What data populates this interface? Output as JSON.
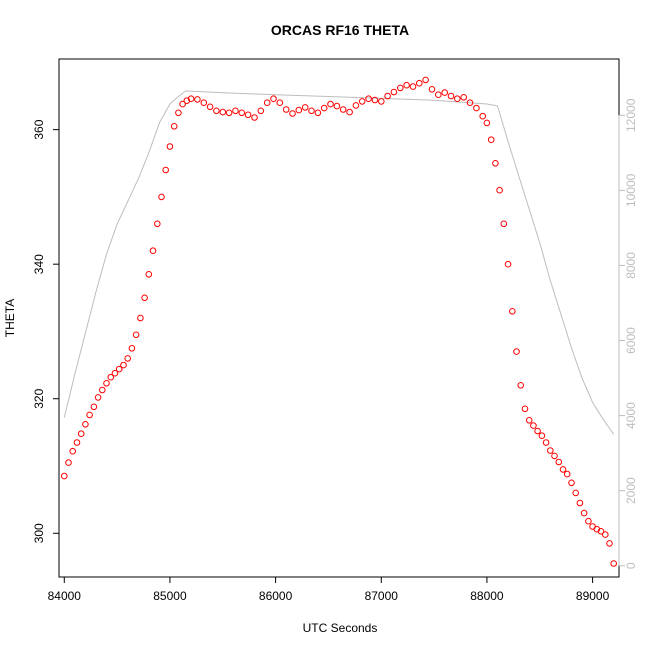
{
  "chart_data": {
    "type": "scatter",
    "title": "ORCAS RF16 THETA",
    "xlabel": "UTC Seconds",
    "ylabel": "THETA",
    "xlim": [
      83950,
      89250
    ],
    "ylim": [
      293.5,
      370.5
    ],
    "x_ticks": [
      84000,
      85000,
      86000,
      87000,
      88000,
      89000
    ],
    "y_ticks": [
      300,
      320,
      340,
      360
    ],
    "series": [
      {
        "marker": "open-circle",
        "color": "#ff0000",
        "points": [
          [
            84000,
            308.5
          ],
          [
            84040,
            310.5
          ],
          [
            84080,
            312.2
          ],
          [
            84120,
            313.5
          ],
          [
            84160,
            314.8
          ],
          [
            84200,
            316.2
          ],
          [
            84240,
            317.6
          ],
          [
            84280,
            318.8
          ],
          [
            84320,
            320.2
          ],
          [
            84360,
            321.3
          ],
          [
            84400,
            322.3
          ],
          [
            84440,
            323.2
          ],
          [
            84480,
            323.8
          ],
          [
            84520,
            324.4
          ],
          [
            84560,
            325.0
          ],
          [
            84600,
            326.0
          ],
          [
            84640,
            327.5
          ],
          [
            84680,
            329.5
          ],
          [
            84720,
            332.0
          ],
          [
            84760,
            335.0
          ],
          [
            84800,
            338.5
          ],
          [
            84840,
            342.0
          ],
          [
            84880,
            346.0
          ],
          [
            84920,
            350.0
          ],
          [
            84960,
            354.0
          ],
          [
            85000,
            357.5
          ],
          [
            85040,
            360.5
          ],
          [
            85080,
            362.5
          ],
          [
            85120,
            363.8
          ],
          [
            85160,
            364.3
          ],
          [
            85200,
            364.6
          ],
          [
            85260,
            364.5
          ],
          [
            85320,
            364.0
          ],
          [
            85380,
            363.4
          ],
          [
            85440,
            362.8
          ],
          [
            85500,
            362.6
          ],
          [
            85560,
            362.5
          ],
          [
            85620,
            362.8
          ],
          [
            85680,
            362.5
          ],
          [
            85740,
            362.2
          ],
          [
            85800,
            361.8
          ],
          [
            85860,
            362.8
          ],
          [
            85920,
            364.0
          ],
          [
            85980,
            364.6
          ],
          [
            86040,
            364.0
          ],
          [
            86100,
            363.0
          ],
          [
            86160,
            362.4
          ],
          [
            86220,
            362.9
          ],
          [
            86280,
            363.3
          ],
          [
            86340,
            362.8
          ],
          [
            86400,
            362.5
          ],
          [
            86460,
            363.2
          ],
          [
            86520,
            363.8
          ],
          [
            86580,
            363.5
          ],
          [
            86640,
            363.0
          ],
          [
            86700,
            362.6
          ],
          [
            86760,
            363.6
          ],
          [
            86820,
            364.2
          ],
          [
            86880,
            364.6
          ],
          [
            86940,
            364.4
          ],
          [
            87000,
            364.2
          ],
          [
            87060,
            365.0
          ],
          [
            87120,
            365.6
          ],
          [
            87180,
            366.2
          ],
          [
            87240,
            366.6
          ],
          [
            87300,
            366.4
          ],
          [
            87360,
            366.9
          ],
          [
            87420,
            367.4
          ],
          [
            87480,
            366.0
          ],
          [
            87540,
            365.2
          ],
          [
            87600,
            365.5
          ],
          [
            87660,
            365.0
          ],
          [
            87720,
            364.6
          ],
          [
            87780,
            364.8
          ],
          [
            87840,
            364.0
          ],
          [
            87900,
            363.2
          ],
          [
            87960,
            362.0
          ],
          [
            88000,
            361.0
          ],
          [
            88040,
            358.5
          ],
          [
            88080,
            355.0
          ],
          [
            88120,
            351.0
          ],
          [
            88160,
            346.0
          ],
          [
            88200,
            340.0
          ],
          [
            88240,
            333.0
          ],
          [
            88280,
            327.0
          ],
          [
            88320,
            322.0
          ],
          [
            88360,
            318.5
          ],
          [
            88400,
            316.8
          ],
          [
            88440,
            316.0
          ],
          [
            88480,
            315.2
          ],
          [
            88520,
            314.5
          ],
          [
            88560,
            313.5
          ],
          [
            88600,
            312.3
          ],
          [
            88640,
            311.5
          ],
          [
            88680,
            310.6
          ],
          [
            88720,
            309.5
          ],
          [
            88760,
            308.8
          ],
          [
            88800,
            307.5
          ],
          [
            88840,
            306.0
          ],
          [
            88880,
            304.5
          ],
          [
            88920,
            303.0
          ],
          [
            88960,
            301.8
          ],
          [
            89000,
            301.0
          ],
          [
            89040,
            300.6
          ],
          [
            89080,
            300.3
          ],
          [
            89120,
            299.8
          ],
          [
            89160,
            298.5
          ],
          [
            89200,
            295.5
          ]
        ]
      },
      {
        "axis": "right",
        "type": "line",
        "color": "#bdbdbd",
        "points": [
          [
            84000,
            3950
          ],
          [
            84100,
            5100
          ],
          [
            84200,
            6200
          ],
          [
            84300,
            7300
          ],
          [
            84400,
            8300
          ],
          [
            84500,
            9100
          ],
          [
            84600,
            9700
          ],
          [
            84700,
            10300
          ],
          [
            84800,
            11000
          ],
          [
            84900,
            11800
          ],
          [
            85000,
            12300
          ],
          [
            85080,
            12500
          ],
          [
            85150,
            12650
          ],
          [
            85500,
            12600
          ],
          [
            86000,
            12550
          ],
          [
            86500,
            12500
          ],
          [
            87000,
            12450
          ],
          [
            87500,
            12400
          ],
          [
            88000,
            12300
          ],
          [
            88100,
            12250
          ],
          [
            88200,
            11300
          ],
          [
            88300,
            10400
          ],
          [
            88400,
            9500
          ],
          [
            88500,
            8600
          ],
          [
            88600,
            7600
          ],
          [
            88700,
            6700
          ],
          [
            88800,
            5800
          ],
          [
            88900,
            5000
          ],
          [
            89000,
            4350
          ],
          [
            89100,
            3900
          ],
          [
            89200,
            3500
          ]
        ]
      }
    ],
    "y2_axis": {
      "color": "#bdbdbd",
      "lim": [
        -300,
        13500
      ],
      "ticks": [
        0,
        2000,
        4000,
        6000,
        8000,
        10000,
        12000
      ]
    }
  }
}
